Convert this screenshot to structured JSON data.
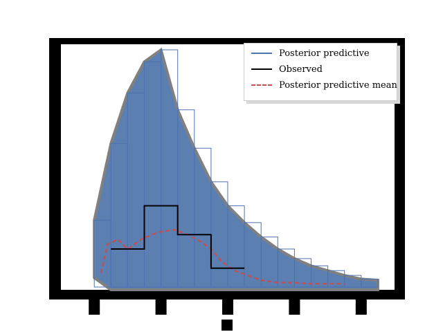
{
  "chart_data": {
    "type": "line",
    "title": "",
    "xlabel": "",
    "ylabel": "",
    "xlim": [
      -0.5,
      4.5
    ],
    "ylim": [
      0,
      1
    ],
    "grid": false,
    "legend_position": "top-right",
    "legend": [
      {
        "label": "Posterior predictive",
        "color": "#4c72b0",
        "style": "solid"
      },
      {
        "label": "Observed",
        "color": "#000000",
        "style": "solid"
      },
      {
        "label": "Posterior predictive mean",
        "color": "#c44e52",
        "style": "dashed"
      }
    ],
    "observed": {
      "name": "Observed",
      "x": [
        0.25,
        0.75,
        0.75,
        1.25,
        1.25,
        1.75,
        1.75,
        2.25
      ],
      "y": [
        0.17,
        0.17,
        0.35,
        0.35,
        0.23,
        0.23,
        0.09,
        0.09
      ]
    },
    "posterior_predictive_mean": {
      "name": "Posterior predictive mean",
      "x": [
        0.1,
        0.2,
        0.35,
        0.5,
        0.7,
        0.95,
        1.2,
        1.4,
        1.6,
        1.75,
        1.9,
        2.1,
        2.3,
        2.5,
        2.75,
        3.0,
        3.25,
        3.5,
        3.75
      ],
      "y": [
        0.07,
        0.19,
        0.21,
        0.17,
        0.21,
        0.24,
        0.25,
        0.23,
        0.2,
        0.17,
        0.12,
        0.08,
        0.06,
        0.04,
        0.03,
        0.03,
        0.025,
        0.025,
        0.025
      ]
    },
    "posterior_predictive_envelope": {
      "name": "Posterior predictive",
      "x": [
        0.0,
        0.25,
        0.5,
        0.75,
        1.0,
        1.25,
        1.5,
        1.75,
        2.0,
        2.25,
        2.5,
        2.75,
        3.0,
        3.25,
        3.5,
        3.75,
        4.0,
        4.25
      ],
      "upper": [
        0.29,
        0.61,
        0.82,
        0.95,
        1.0,
        0.75,
        0.59,
        0.45,
        0.35,
        0.28,
        0.22,
        0.17,
        0.13,
        0.1,
        0.08,
        0.06,
        0.045,
        0.04
      ],
      "lower": [
        0.05,
        0.0,
        0.0,
        0.0,
        0.0,
        0.0,
        0.0,
        0.0,
        0.0,
        0.0,
        0.0,
        0.0,
        0.0,
        0.0,
        0.0,
        0.0,
        0.0,
        0.0
      ]
    },
    "colors": {
      "posterior_fill": "#5a7fb0",
      "posterior_line": "#4c72b0",
      "edge": "#808080",
      "observed": "#000000",
      "mean": "#c44e52",
      "frame": "#000000"
    }
  }
}
